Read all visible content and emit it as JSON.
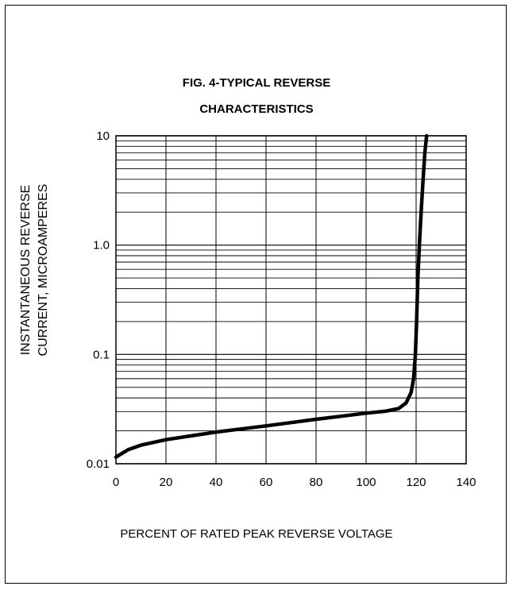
{
  "chart_data": {
    "type": "line",
    "title_line1": "FIG. 4-TYPICAL REVERSE",
    "title_line2": "CHARACTERISTICS",
    "ylabel_line1": "INSTANTANEOUS REVERSE",
    "ylabel_line2": "CURRENT, MICROAMPERES",
    "xlabel": "PERCENT OF RATED PEAK REVERSE VOLTAGE",
    "xlim": [
      0,
      140
    ],
    "ylim": [
      0.01,
      10
    ],
    "yscale": "log",
    "grid": true,
    "x_ticks": [
      "0",
      "20",
      "40",
      "60",
      "80",
      "100",
      "120",
      "140"
    ],
    "y_ticks": [
      "0.01",
      "0.1",
      "1.0",
      "10"
    ],
    "series": [
      {
        "x": [
          0,
          5,
          10,
          20,
          30,
          40,
          50,
          60,
          70,
          80,
          90,
          100,
          108,
          113,
          116,
          118,
          119,
          119.7,
          120.2,
          120.7,
          121.3,
          122,
          122.8,
          123.5,
          124.2
        ],
        "y": [
          0.0115,
          0.0135,
          0.0148,
          0.0166,
          0.018,
          0.0195,
          0.0208,
          0.0222,
          0.0238,
          0.0255,
          0.0272,
          0.029,
          0.0303,
          0.032,
          0.036,
          0.045,
          0.06,
          0.1,
          0.2,
          0.5,
          1.0,
          2.0,
          4.0,
          7.0,
          10.0
        ]
      }
    ]
  }
}
